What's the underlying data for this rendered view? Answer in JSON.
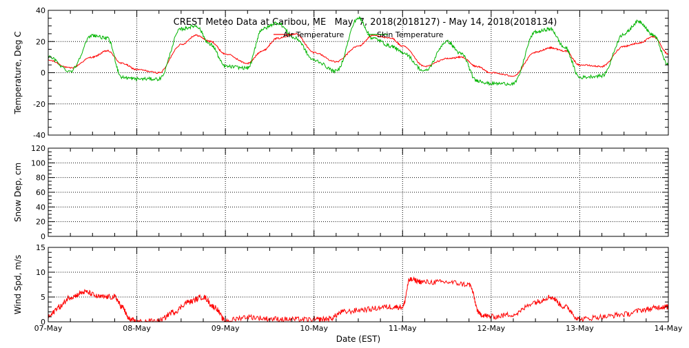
{
  "title": "CREST Meteo Data at Caribou, ME   May  7, 2018(2018127) - May 14, 2018(2018134)",
  "colors": {
    "air": "#ff0000",
    "skin": "#00b400",
    "wind": "#ff0000",
    "axes": "#000000"
  },
  "chart_data": [
    {
      "type": "line",
      "ylabel": "Temperature, Deg C",
      "ylim": [
        -40,
        40
      ],
      "yticks": [
        "-40",
        "-20",
        "0",
        "20",
        "40"
      ],
      "x_domain": [
        "07-May",
        "14-May"
      ],
      "grid": true,
      "legend": "top-center",
      "series": [
        {
          "name": "Air Temperature",
          "x": [
            "07-May 00:00",
            "07-May 06:00",
            "07-May 12:00",
            "07-May 16:00",
            "07-May 20:00",
            "08-May 00:00",
            "08-May 06:00",
            "08-May 12:00",
            "08-May 16:00",
            "08-May 20:00",
            "09-May 00:00",
            "09-May 06:00",
            "09-May 10:00",
            "09-May 14:00",
            "09-May 19:00",
            "10-May 00:00",
            "10-May 06:00",
            "10-May 12:00",
            "10-May 16:00",
            "10-May 21:00",
            "11-May 00:00",
            "11-May 06:00",
            "11-May 12:00",
            "11-May 16:00",
            "11-May 20:00",
            "12-May 00:00",
            "12-May 06:00",
            "12-May 12:00",
            "12-May 16:00",
            "12-May 20:00",
            "13-May 00:00",
            "13-May 06:00",
            "13-May 12:00",
            "13-May 16:00",
            "13-May 20:00",
            "14-May 00:00"
          ],
          "values": [
            8,
            3,
            10,
            14,
            6,
            2,
            0,
            18,
            24,
            20,
            12,
            6,
            14,
            22,
            25,
            13,
            7,
            17,
            24,
            22,
            17,
            4,
            9,
            10,
            4,
            0,
            -2,
            13,
            16,
            14,
            5,
            4,
            17,
            19,
            23,
            12
          ]
        },
        {
          "name": "Skin Temperature",
          "x": [
            "07-May 00:00",
            "07-May 06:00",
            "07-May 12:00",
            "07-May 16:00",
            "07-May 20:00",
            "08-May 00:00",
            "08-May 06:00",
            "08-May 12:00",
            "08-May 16:00",
            "08-May 20:00",
            "09-May 00:00",
            "09-May 06:00",
            "09-May 10:00",
            "09-May 14:00",
            "09-May 19:00",
            "10-May 00:00",
            "10-May 06:00",
            "10-May 12:00",
            "10-May 16:00",
            "10-May 21:00",
            "11-May 00:00",
            "11-May 06:00",
            "11-May 12:00",
            "11-May 16:00",
            "11-May 20:00",
            "12-May 00:00",
            "12-May 06:00",
            "12-May 12:00",
            "12-May 16:00",
            "12-May 20:00",
            "13-May 00:00",
            "13-May 06:00",
            "13-May 12:00",
            "13-May 16:00",
            "13-May 20:00",
            "14-May 00:00"
          ],
          "values": [
            10,
            1,
            24,
            22,
            -3,
            -4,
            -4,
            28,
            30,
            18,
            4,
            3,
            28,
            32,
            22,
            8,
            1,
            35,
            22,
            17,
            13,
            1,
            20,
            12,
            -5,
            -7,
            -7,
            26,
            28,
            16,
            -3,
            -2,
            25,
            33,
            24,
            5
          ]
        }
      ]
    },
    {
      "type": "line",
      "ylabel": "Snow Dep, cm",
      "ylim": [
        0,
        120
      ],
      "yticks": [
        "0",
        "20",
        "40",
        "60",
        "80",
        "100",
        "120"
      ],
      "x_domain": [
        "07-May",
        "14-May"
      ],
      "grid": true,
      "series": []
    },
    {
      "type": "line",
      "ylabel": "Wind Spd, m/s",
      "xlabel": "Date (EST)",
      "ylim": [
        0,
        15
      ],
      "yticks": [
        "0",
        "5",
        "10",
        "15"
      ],
      "x_domain": [
        "07-May",
        "14-May"
      ],
      "xticks": [
        "07-May",
        "08-May",
        "09-May",
        "10-May",
        "11-May",
        "12-May",
        "13-May",
        "14-May"
      ],
      "grid": true,
      "series": [
        {
          "x": [
            "07-May 00:00",
            "07-May 03:00",
            "07-May 06:00",
            "07-May 10:00",
            "07-May 14:00",
            "07-May 18:00",
            "07-May 20:00",
            "07-May 22:00",
            "08-May 00:00",
            "08-May 06:00",
            "08-May 10:00",
            "08-May 14:00",
            "08-May 18:00",
            "08-May 21:00",
            "09-May 00:00",
            "09-May 06:00",
            "09-May 12:00",
            "09-May 18:00",
            "10-May 00:00",
            "10-May 04:00",
            "10-May 08:00",
            "10-May 14:00",
            "10-May 20:00",
            "11-May 00:00",
            "11-May 02:00",
            "11-May 06:00",
            "11-May 12:00",
            "11-May 18:00",
            "11-May 21:00",
            "12-May 00:00",
            "12-May 06:00",
            "12-May 12:00",
            "12-May 16:00",
            "12-May 20:00",
            "13-May 00:00",
            "13-May 06:00",
            "13-May 12:00",
            "13-May 18:00",
            "13-May 22:00",
            "14-May 00:00"
          ],
          "values": [
            1,
            3,
            5,
            6,
            5,
            5,
            3,
            0.5,
            0,
            0.2,
            2,
            4,
            5,
            3,
            0.2,
            1,
            0.6,
            0.5,
            0.4,
            0.6,
            2,
            2.5,
            3,
            3,
            8.5,
            8,
            8,
            7.5,
            1.5,
            1,
            1.5,
            4,
            5,
            3,
            0.5,
            1,
            1.5,
            2.5,
            3,
            3
          ]
        }
      ]
    }
  ]
}
